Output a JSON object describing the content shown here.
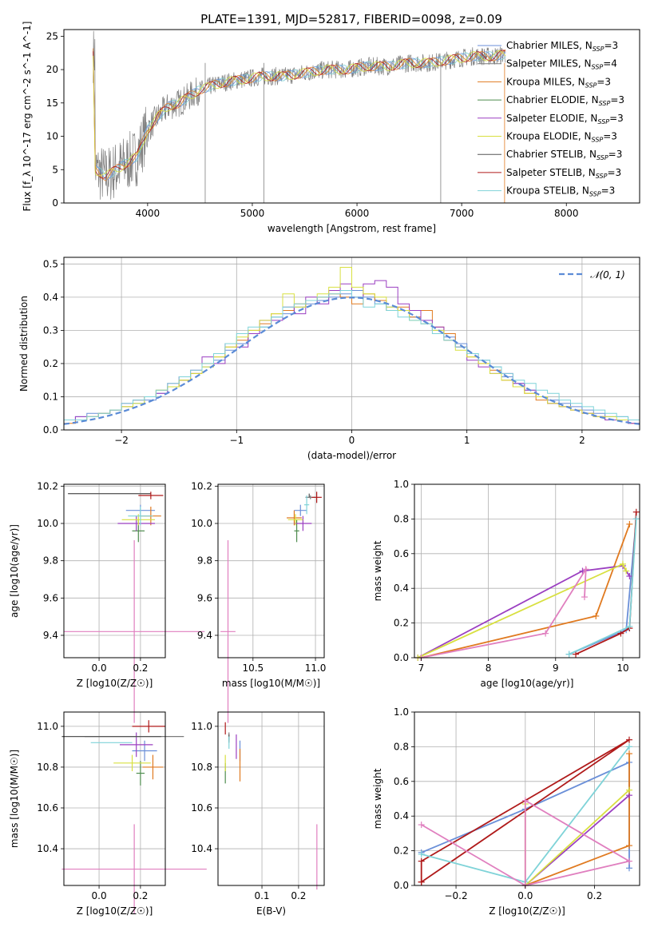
{
  "figure": {
    "title": "PLATE=1391, MJD=52817, FIBERID=0098, z=0.09"
  },
  "colors": {
    "Chabrier MILES": "#6a8fd8",
    "Salpeter MILES": "#7a7a7a",
    "Kroupa MILES": "#e07a20",
    "Chabrier ELODIE": "#4e8c4e",
    "Salpeter ELODIE": "#9b3fc1",
    "Kroupa ELODIE": "#d8e040",
    "Chabrier STELIB": "#555555",
    "Salpeter STELIB": "#b01a1a",
    "Kroupa STELIB": "#7fd3d8",
    "pink": "#e07fbf",
    "normal": "#5b8bd6"
  },
  "chart_data": [
    {
      "id": "spectrum",
      "type": "line",
      "xlabel": "wavelength [Angstrom, rest frame]",
      "ylabel": "Flux [f_λ 10^-17 erg cm^-2 s^-1 A^-1]",
      "xlim": [
        3200,
        8700
      ],
      "ylim": [
        0,
        26
      ],
      "xticks": [
        4000,
        5000,
        6000,
        7000,
        8000
      ],
      "yticks": [
        0,
        5,
        10,
        15,
        20,
        25
      ],
      "legend": {
        "placement": "right",
        "entries": [
          {
            "name": "Chabrier MILES",
            "n": "3"
          },
          {
            "name": "Salpeter MILES",
            "n": "4"
          },
          {
            "name": "Kroupa MILES",
            "n": "3"
          },
          {
            "name": "Chabrier ELODIE",
            "n": "3"
          },
          {
            "name": "Salpeter ELODIE",
            "n": "3"
          },
          {
            "name": "Kroupa ELODIE",
            "n": "3"
          },
          {
            "name": "Chabrier STELIB",
            "n": "3"
          },
          {
            "name": "Salpeter STELIB",
            "n": "3"
          },
          {
            "name": "Kroupa STELIB",
            "n": "3"
          }
        ]
      },
      "data_trend": {
        "x": [
          3500,
          3600,
          3700,
          3800,
          3900,
          4000,
          4100,
          4200,
          4300,
          4400,
          4500,
          4700,
          4900,
          5100,
          5300,
          5500,
          5700,
          5900,
          6100,
          6300,
          6500,
          6700,
          6900,
          7100,
          7300,
          7500
        ],
        "y": [
          5,
          4,
          5,
          6,
          7,
          11,
          13,
          14.5,
          15,
          16,
          17,
          18,
          18.5,
          19,
          19,
          19.5,
          20,
          20,
          20.5,
          20.5,
          21,
          21,
          21.5,
          22,
          22,
          22.5
        ]
      }
    },
    {
      "id": "residuals",
      "type": "histogram",
      "xlabel": "(data-model)/error",
      "ylabel": "Normed distribution",
      "xlim": [
        -2.5,
        2.5
      ],
      "ylim": [
        0,
        0.52
      ],
      "xticks": [
        -2,
        -1,
        0,
        1,
        2
      ],
      "yticks": [
        0.0,
        0.1,
        0.2,
        0.3,
        0.4,
        0.5
      ],
      "legend": {
        "placement": "top-right",
        "label": "N(0,1)"
      },
      "bin_width": 0.1,
      "series": [
        {
          "color": "Chabrier MILES",
          "values": [
            0.03,
            0.04,
            0.05,
            0.05,
            0.06,
            0.07,
            0.08,
            0.09,
            0.11,
            0.13,
            0.15,
            0.17,
            0.19,
            0.21,
            0.24,
            0.26,
            0.29,
            0.31,
            0.34,
            0.35,
            0.37,
            0.38,
            0.39,
            0.4,
            0.41,
            0.42,
            0.4,
            0.38,
            0.37,
            0.36,
            0.34,
            0.32,
            0.3,
            0.28,
            0.26,
            0.23,
            0.21,
            0.19,
            0.16,
            0.14,
            0.12,
            0.1,
            0.09,
            0.08,
            0.07,
            0.06,
            0.05,
            0.04,
            0.04,
            0.03
          ]
        },
        {
          "color": "Kroupa MILES",
          "values": [
            0.02,
            0.03,
            0.04,
            0.05,
            0.06,
            0.07,
            0.09,
            0.1,
            0.12,
            0.13,
            0.15,
            0.17,
            0.2,
            0.22,
            0.25,
            0.27,
            0.3,
            0.32,
            0.35,
            0.36,
            0.38,
            0.39,
            0.4,
            0.41,
            0.4,
            0.38,
            0.41,
            0.39,
            0.36,
            0.37,
            0.34,
            0.36,
            0.31,
            0.29,
            0.25,
            0.22,
            0.2,
            0.18,
            0.15,
            0.13,
            0.11,
            0.09,
            0.08,
            0.07,
            0.06,
            0.05,
            0.04,
            0.03,
            0.03,
            0.02
          ]
        },
        {
          "color": "Salpeter ELODIE",
          "values": [
            0.03,
            0.04,
            0.04,
            0.05,
            0.06,
            0.08,
            0.09,
            0.1,
            0.11,
            0.14,
            0.16,
            0.18,
            0.22,
            0.2,
            0.26,
            0.25,
            0.29,
            0.33,
            0.33,
            0.37,
            0.35,
            0.4,
            0.38,
            0.42,
            0.44,
            0.4,
            0.44,
            0.45,
            0.43,
            0.38,
            0.36,
            0.33,
            0.31,
            0.27,
            0.25,
            0.21,
            0.19,
            0.17,
            0.17,
            0.14,
            0.12,
            0.1,
            0.08,
            0.07,
            0.06,
            0.05,
            0.04,
            0.03,
            0.03,
            0.02
          ]
        },
        {
          "color": "Kroupa ELODIE",
          "values": [
            0.03,
            0.03,
            0.04,
            0.05,
            0.06,
            0.07,
            0.08,
            0.1,
            0.12,
            0.13,
            0.15,
            0.17,
            0.19,
            0.22,
            0.25,
            0.28,
            0.3,
            0.33,
            0.35,
            0.41,
            0.37,
            0.39,
            0.41,
            0.43,
            0.49,
            0.43,
            0.41,
            0.4,
            0.37,
            0.36,
            0.33,
            0.32,
            0.3,
            0.27,
            0.24,
            0.22,
            0.2,
            0.17,
            0.15,
            0.13,
            0.11,
            0.1,
            0.08,
            0.07,
            0.06,
            0.05,
            0.04,
            0.04,
            0.03,
            0.03
          ]
        },
        {
          "color": "Kroupa STELIB",
          "values": [
            0.03,
            0.03,
            0.04,
            0.05,
            0.06,
            0.08,
            0.09,
            0.1,
            0.12,
            0.14,
            0.16,
            0.18,
            0.2,
            0.23,
            0.26,
            0.29,
            0.31,
            0.31,
            0.34,
            0.37,
            0.38,
            0.39,
            0.4,
            0.41,
            0.42,
            0.4,
            0.37,
            0.38,
            0.36,
            0.34,
            0.33,
            0.32,
            0.29,
            0.27,
            0.25,
            0.23,
            0.21,
            0.19,
            0.17,
            0.15,
            0.14,
            0.12,
            0.11,
            0.09,
            0.08,
            0.07,
            0.06,
            0.05,
            0.04,
            0.03
          ]
        }
      ]
    },
    {
      "id": "z-age",
      "type": "scatter",
      "xlabel": "Z [log10(Z/Z☉)]",
      "ylabel": "age [log10(age/yr)]",
      "xlim": [
        -0.17,
        0.32
      ],
      "ylim": [
        9.28,
        10.21
      ],
      "xticks": [
        0.0,
        0.2
      ],
      "yticks": [
        9.4,
        9.6,
        9.8,
        10.0,
        10.2
      ],
      "points": [
        {
          "c": "Chabrier MILES",
          "x": 0.2,
          "y": 10.07,
          "xe": 0.07,
          "ye": 0.03
        },
        {
          "c": "Salpeter MILES",
          "x": 0.05,
          "y": 10.16,
          "xe": 0.2,
          "ye": 0.0
        },
        {
          "c": "Kroupa MILES",
          "x": 0.25,
          "y": 10.04,
          "xe": 0.05,
          "ye": 0.05
        },
        {
          "c": "Chabrier ELODIE",
          "x": 0.19,
          "y": 9.96,
          "xe": 0.03,
          "ye": 0.06
        },
        {
          "c": "Salpeter ELODIE",
          "x": 0.18,
          "y": 10.0,
          "xe": 0.09,
          "ye": 0.04
        },
        {
          "c": "Kroupa ELODIE",
          "x": 0.19,
          "y": 10.02,
          "xe": 0.08,
          "ye": 0.03
        },
        {
          "c": "Chabrier STELIB",
          "x": 0.05,
          "y": 10.16,
          "xe": 0.2,
          "ye": 0.0
        },
        {
          "c": "Salpeter STELIB",
          "x": 0.25,
          "y": 10.15,
          "xe": 0.06,
          "ye": 0.02
        },
        {
          "c": "Kroupa STELIB",
          "x": 0.2,
          "y": 10.04,
          "xe": 0.06,
          "ye": 0.05
        },
        {
          "c": "pink",
          "x": 0.17,
          "y": 9.42,
          "xe": 0.34,
          "ye": 0.49
        }
      ]
    },
    {
      "id": "mass-age",
      "type": "scatter",
      "xlabel": "mass [log10(M/M☉)]",
      "ylabel": "",
      "xlim": [
        10.22,
        11.07
      ],
      "ylim": [
        9.28,
        10.21
      ],
      "xticks": [
        10.5,
        11.0
      ],
      "yticks": [
        9.4,
        9.6,
        9.8,
        10.0,
        10.2
      ],
      "points": [
        {
          "c": "Chabrier MILES",
          "x": 10.88,
          "y": 10.07,
          "xe": 0.05,
          "ye": 0.03
        },
        {
          "c": "Salpeter MILES",
          "x": 10.96,
          "y": 10.14,
          "xe": 0.04,
          "ye": 0.01
        },
        {
          "c": "Kroupa MILES",
          "x": 10.83,
          "y": 10.03,
          "xe": 0.06,
          "ye": 0.04
        },
        {
          "c": "Chabrier ELODIE",
          "x": 10.85,
          "y": 9.96,
          "xe": 0.02,
          "ye": 0.06
        },
        {
          "c": "Salpeter ELODIE",
          "x": 10.9,
          "y": 10.0,
          "xe": 0.07,
          "ye": 0.04
        },
        {
          "c": "Kroupa ELODIE",
          "x": 10.84,
          "y": 10.02,
          "xe": 0.06,
          "ye": 0.03
        },
        {
          "c": "Chabrier STELIB",
          "x": 10.95,
          "y": 10.15,
          "xe": 0.0,
          "ye": 0.01
        },
        {
          "c": "Salpeter STELIB",
          "x": 11.01,
          "y": 10.14,
          "xe": 0.04,
          "ye": 0.03
        },
        {
          "c": "Kroupa STELIB",
          "x": 10.93,
          "y": 10.1,
          "xe": 0.02,
          "ye": 0.05
        },
        {
          "c": "pink",
          "x": 10.3,
          "y": 9.42,
          "xe": 0.06,
          "ye": 0.49
        }
      ]
    },
    {
      "id": "age-massweight",
      "type": "line",
      "xlabel": "age [log10(age/yr)]",
      "ylabel": "mass weight",
      "xlim": [
        6.9,
        10.25
      ],
      "ylim": [
        0,
        1.0
      ],
      "xticks": [
        7,
        8,
        9,
        10
      ],
      "yticks": [
        0.0,
        0.2,
        0.4,
        0.6,
        0.8,
        1.0
      ],
      "series": [
        {
          "c": "Chabrier MILES",
          "x": [
            9.2,
            10.05,
            10.2
          ],
          "y": [
            0.02,
            0.16,
            0.8
          ]
        },
        {
          "c": "Kroupa MILES",
          "x": [
            7.0,
            9.6,
            10.1
          ],
          "y": [
            0.0,
            0.24,
            0.77
          ]
        },
        {
          "c": "Salpeter ELODIE",
          "x": [
            6.95,
            9.4,
            10.0,
            10.1
          ],
          "y": [
            0.0,
            0.5,
            0.53,
            0.47
          ]
        },
        {
          "c": "Kroupa ELODIE",
          "x": [
            6.95,
            10.0,
            10.05
          ],
          "y": [
            0.0,
            0.54,
            0.5
          ]
        },
        {
          "c": "Salpeter STELIB",
          "x": [
            9.3,
            9.97,
            10.1,
            10.2
          ],
          "y": [
            0.02,
            0.14,
            0.17,
            0.84
          ]
        },
        {
          "c": "Kroupa STELIB",
          "x": [
            9.2,
            10.1,
            10.2
          ],
          "y": [
            0.02,
            0.18,
            0.8
          ]
        },
        {
          "c": "pink",
          "x": [
            7.0,
            8.85,
            9.45,
            9.43
          ],
          "y": [
            0.0,
            0.14,
            0.51,
            0.35
          ]
        }
      ]
    },
    {
      "id": "z-mass",
      "type": "scatter",
      "xlabel": "Z [log10(Z/Z☉)]",
      "ylabel": "mass [log10(M/M☉)]",
      "xlim": [
        -0.17,
        0.32
      ],
      "ylim": [
        10.22,
        11.07
      ],
      "xticks": [
        0.0,
        0.2
      ],
      "yticks": [
        10.4,
        10.6,
        10.8,
        11.0
      ],
      "points": [
        {
          "c": "Chabrier MILES",
          "x": 0.22,
          "y": 10.88,
          "xe": 0.06,
          "ye": 0.05
        },
        {
          "c": "Salpeter MILES",
          "x": 0.17,
          "y": 10.95,
          "xe": 0.24,
          "ye": 0.0
        },
        {
          "c": "Kroupa MILES",
          "x": 0.26,
          "y": 10.8,
          "xe": 0.05,
          "ye": 0.06
        },
        {
          "c": "Chabrier ELODIE",
          "x": 0.2,
          "y": 10.77,
          "xe": 0.02,
          "ye": 0.06
        },
        {
          "c": "Salpeter ELODIE",
          "x": 0.18,
          "y": 10.91,
          "xe": 0.08,
          "ye": 0.06
        },
        {
          "c": "Kroupa ELODIE",
          "x": 0.16,
          "y": 10.82,
          "xe": 0.09,
          "ye": 0.04
        },
        {
          "c": "Chabrier STELIB",
          "x": 0.06,
          "y": 10.95,
          "xe": 0.24,
          "ye": 0.0
        },
        {
          "c": "Salpeter STELIB",
          "x": 0.24,
          "y": 11.0,
          "xe": 0.08,
          "ye": 0.03
        },
        {
          "c": "Kroupa STELIB",
          "x": 0.06,
          "y": 10.92,
          "xe": 0.1,
          "ye": 0.0
        },
        {
          "c": "pink",
          "x": 0.17,
          "y": 10.3,
          "xe": 0.35,
          "ye": 0.22
        }
      ]
    },
    {
      "id": "ebv-mass",
      "type": "scatter",
      "xlabel": "E(B-V)",
      "ylabel": "",
      "xlim": [
        -0.02,
        0.27
      ],
      "ylim": [
        10.22,
        11.07
      ],
      "xticks": [
        0.1,
        0.2
      ],
      "yticks": [
        10.4,
        10.6,
        10.8,
        11.0
      ],
      "points": [
        {
          "c": "Chabrier MILES",
          "x": 0.04,
          "y": 10.88,
          "xe": 0.0,
          "ye": 0.05
        },
        {
          "c": "Salpeter MILES",
          "x": 0.01,
          "y": 10.95,
          "xe": 0.0,
          "ye": 0.02
        },
        {
          "c": "Kroupa MILES",
          "x": 0.04,
          "y": 10.81,
          "xe": 0.0,
          "ye": 0.08
        },
        {
          "c": "Chabrier ELODIE",
          "x": 0.0,
          "y": 10.77,
          "xe": 0.0,
          "ye": 0.05
        },
        {
          "c": "Salpeter ELODIE",
          "x": 0.03,
          "y": 10.9,
          "xe": 0.0,
          "ye": 0.06
        },
        {
          "c": "Kroupa ELODIE",
          "x": 0.0,
          "y": 10.82,
          "xe": 0.0,
          "ye": 0.04
        },
        {
          "c": "Chabrier STELIB",
          "x": 0.01,
          "y": 10.94,
          "xe": 0.0,
          "ye": 0.02
        },
        {
          "c": "Salpeter STELIB",
          "x": 0.0,
          "y": 10.99,
          "xe": 0.0,
          "ye": 0.03
        },
        {
          "c": "Kroupa STELIB",
          "x": 0.01,
          "y": 10.92,
          "xe": 0.0,
          "ye": 0.03
        },
        {
          "c": "pink",
          "x": 0.25,
          "y": 10.36,
          "xe": 0.0,
          "ye": 0.16
        }
      ]
    },
    {
      "id": "z-massweight",
      "type": "line",
      "xlabel": "Z [log10(Z/Z☉)]",
      "ylabel": "mass weight",
      "xlim": [
        -0.32,
        0.33
      ],
      "ylim": [
        0,
        1.0
      ],
      "xticks": [
        -0.2,
        0.0,
        0.2
      ],
      "yticks": [
        0.0,
        0.2,
        0.4,
        0.6,
        0.8,
        1.0
      ],
      "series": [
        {
          "c": "Chabrier MILES",
          "x": [
            -0.3,
            0.0,
            0.3,
            0.3
          ],
          "y": [
            0.19,
            0.44,
            0.71,
            0.1
          ]
        },
        {
          "c": "Kroupa MILES",
          "x": [
            0.0,
            0.3,
            0.3
          ],
          "y": [
            0.0,
            0.23,
            0.76
          ]
        },
        {
          "c": "Salpeter ELODIE",
          "x": [
            0.0,
            0.3
          ],
          "y": [
            0.0,
            0.52
          ]
        },
        {
          "c": "Kroupa ELODIE",
          "x": [
            0.0,
            0.0,
            0.3
          ],
          "y": [
            0.47,
            0.0,
            0.55
          ]
        },
        {
          "c": "Salpeter STELIB",
          "x": [
            -0.3,
            0.3,
            -0.3,
            -0.3
          ],
          "y": [
            0.02,
            0.84,
            0.14,
            0.02
          ]
        },
        {
          "c": "Kroupa STELIB",
          "x": [
            -0.3,
            0.0,
            0.3,
            0.3
          ],
          "y": [
            0.18,
            0.02,
            0.8,
            0.8
          ]
        },
        {
          "c": "pink",
          "x": [
            -0.3,
            0.0,
            0.3,
            0.0,
            0.0
          ],
          "y": [
            0.35,
            0.0,
            0.14,
            0.49,
            0.0
          ]
        }
      ]
    }
  ]
}
